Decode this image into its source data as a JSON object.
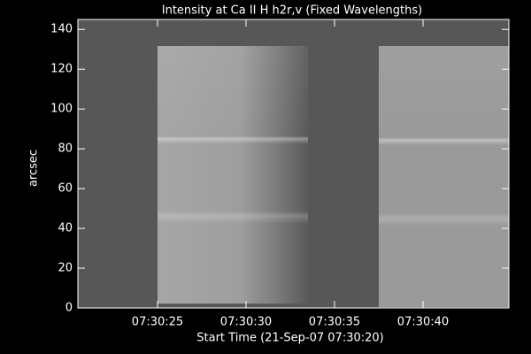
{
  "chart_data": {
    "type": "image",
    "title": "Intensity at Ca II H h2r,v (Fixed Wavelengths)",
    "x_label": "Start Time (21-Sep-07 07:30:20)",
    "y_label": "arcsec",
    "xlim": [
      0.5,
      24.85
    ],
    "xticks": [
      {
        "value": 5,
        "label": "07:30:25"
      },
      {
        "value": 10,
        "label": "07:30:30"
      },
      {
        "value": 15,
        "label": "07:30:35"
      },
      {
        "value": 20,
        "label": "07:30:40"
      }
    ],
    "ylim": [
      0,
      145
    ],
    "yticks": [
      0,
      20,
      40,
      60,
      80,
      100,
      120,
      140
    ]
  }
}
